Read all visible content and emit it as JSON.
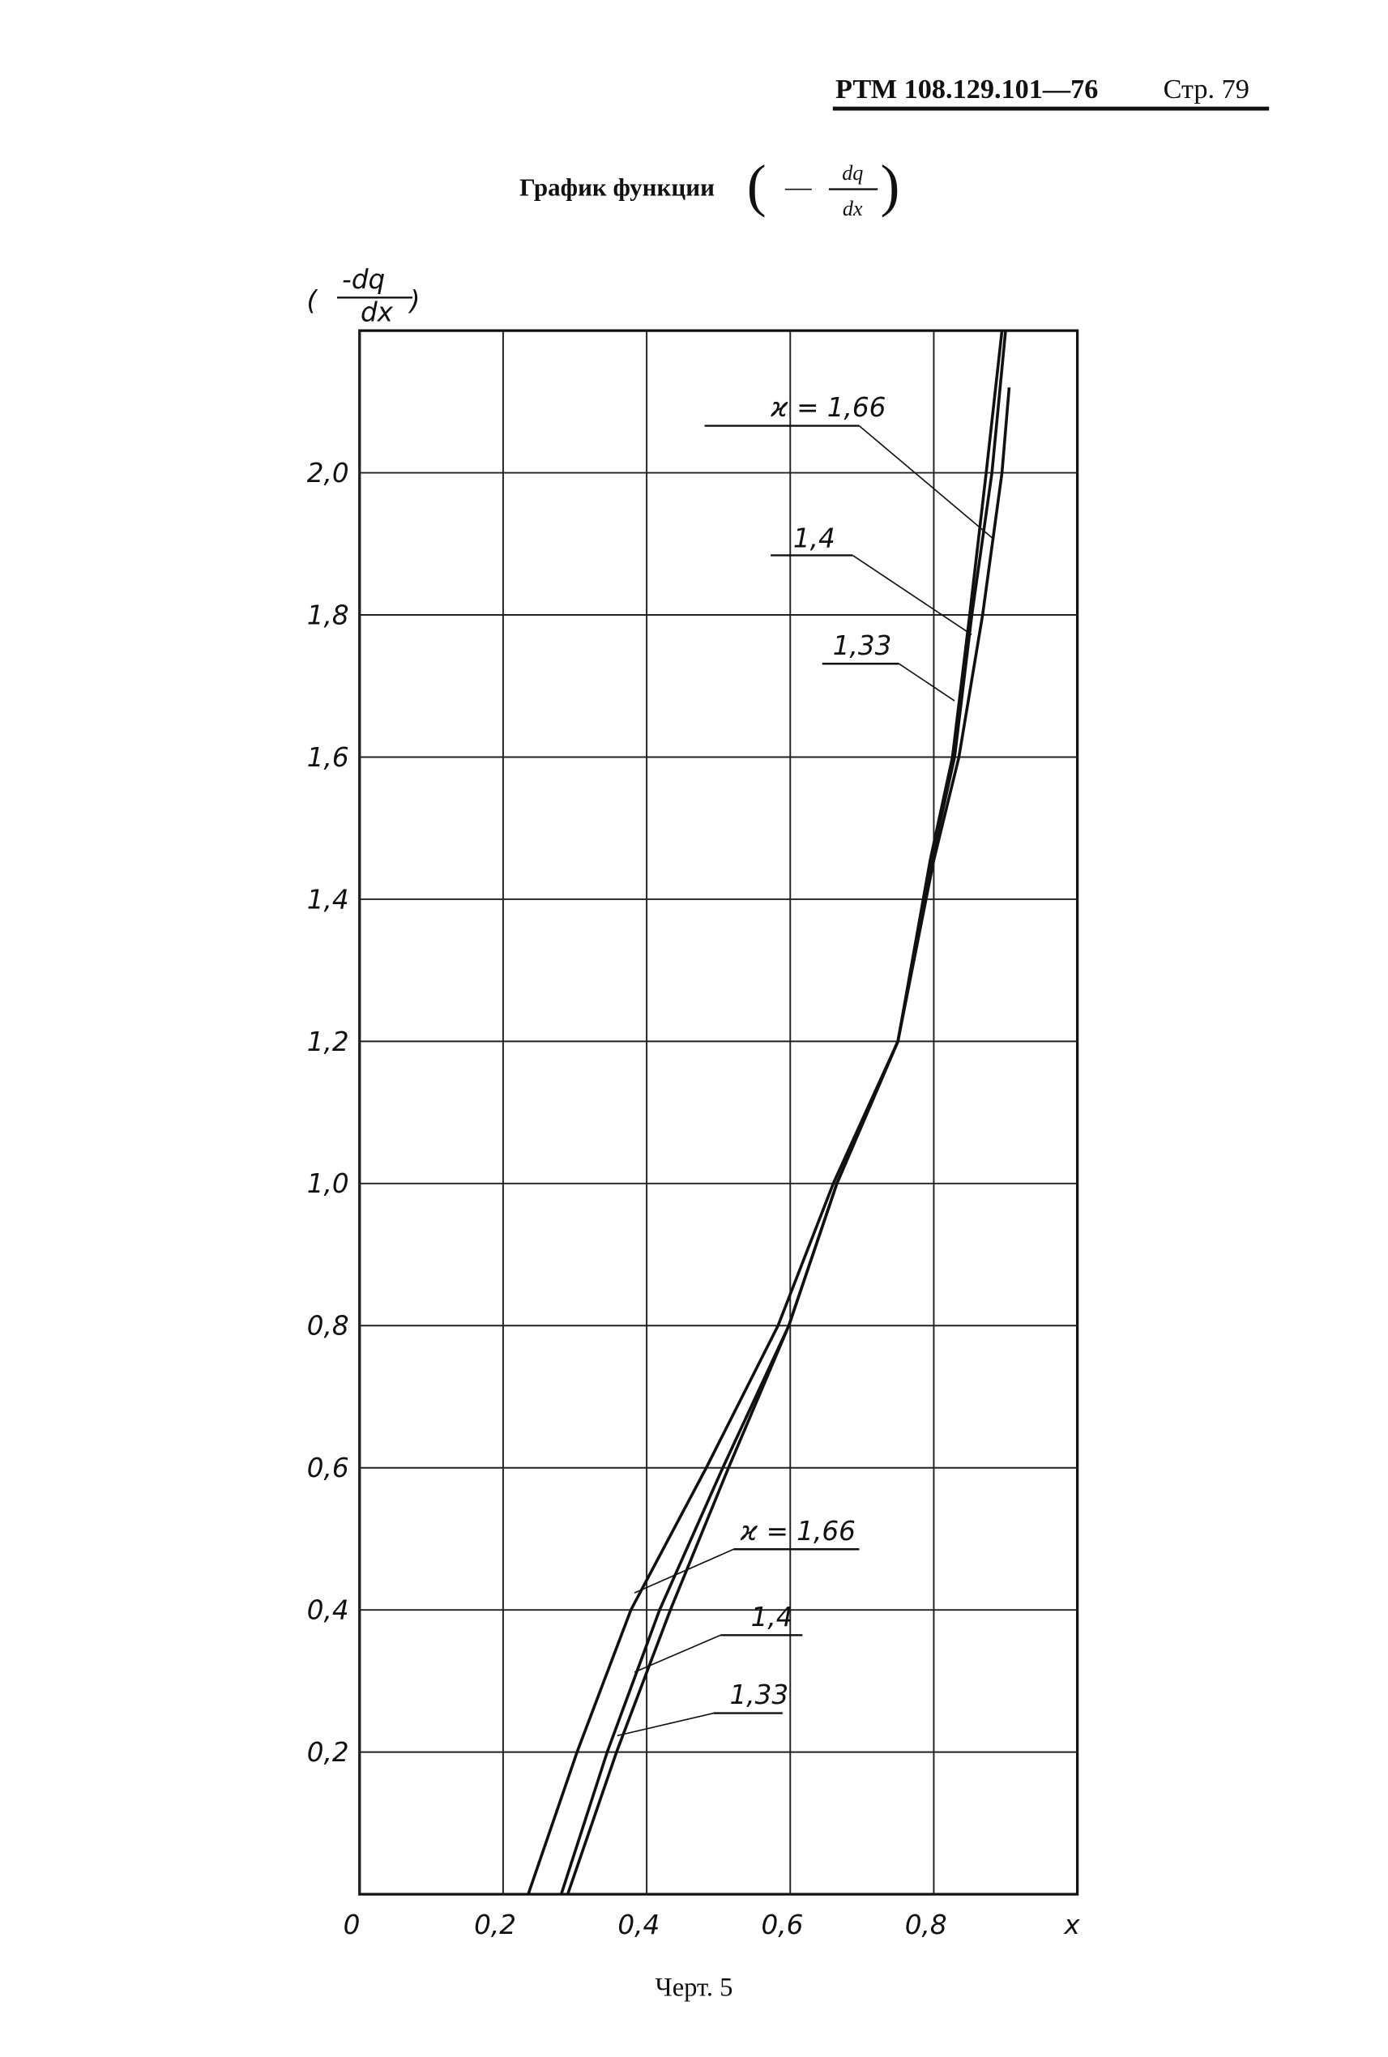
{
  "header": {
    "code": "РТМ 108.129.101—76",
    "page": "Стр. 79"
  },
  "chart_data": {
    "type": "line",
    "title": "График функции",
    "title_sign": "—",
    "title_numerator": "dq",
    "title_denominator": "dx",
    "y_label_numerator": "-dq",
    "y_label_denominator": "dx",
    "x_label": "x",
    "xlim": [
      0,
      1
    ],
    "ylim": [
      0,
      2.2
    ],
    "xticks": [
      0,
      {
        "value": 0.2,
        "label": "0,2"
      },
      {
        "value": 0.4,
        "label": "0,4"
      },
      {
        "value": 0.6,
        "label": "0,6"
      },
      {
        "value": 0.8,
        "label": "0,8"
      }
    ],
    "yticks": [
      {
        "value": 0.2,
        "label": "0,2"
      },
      {
        "value": 0.4,
        "label": "0,4"
      },
      {
        "value": 0.6,
        "label": "0,6"
      },
      {
        "value": 0.8,
        "label": "0,8"
      },
      {
        "value": 1.0,
        "label": "1,0"
      },
      {
        "value": 1.2,
        "label": "1,2"
      },
      {
        "value": 1.4,
        "label": "1,4"
      },
      {
        "value": 1.6,
        "label": "1,6"
      },
      {
        "value": 1.8,
        "label": "1,8"
      },
      {
        "value": 2.0,
        "label": "2,0"
      }
    ],
    "grid": true,
    "series": [
      {
        "name": "ϰ = 1,66",
        "color": "#111111",
        "x": [
          0.235,
          0.303,
          0.378,
          0.483,
          0.583,
          0.66,
          0.75,
          0.795,
          0.826,
          0.85,
          0.873,
          0.895
        ],
        "values": [
          0,
          0.2,
          0.4,
          0.6,
          0.8,
          1.0,
          1.2,
          1.455,
          1.6,
          1.8,
          2.0,
          2.2
        ]
      },
      {
        "name": "1,4",
        "color": "#111111",
        "x": [
          0.281,
          0.345,
          0.418,
          0.506,
          0.598,
          0.665,
          0.75,
          0.797,
          0.829,
          0.853,
          0.881,
          0.9
        ],
        "values": [
          0,
          0.2,
          0.4,
          0.6,
          0.8,
          1.0,
          1.2,
          1.455,
          1.6,
          1.8,
          2.0,
          2.2
        ]
      },
      {
        "name": "1,33",
        "color": "#111111",
        "x": [
          0.29,
          0.358,
          0.433,
          0.514,
          0.598,
          0.665,
          0.75,
          0.8,
          0.835,
          0.868,
          0.895,
          0.905
        ],
        "values": [
          0,
          0.2,
          0.4,
          0.6,
          0.8,
          1.0,
          1.2,
          1.455,
          1.6,
          1.8,
          2.0,
          2.12
        ]
      }
    ],
    "annotations": [
      "ϰ = 1,66",
      "1,4",
      "1,33"
    ]
  },
  "caption": "Черт. 5"
}
